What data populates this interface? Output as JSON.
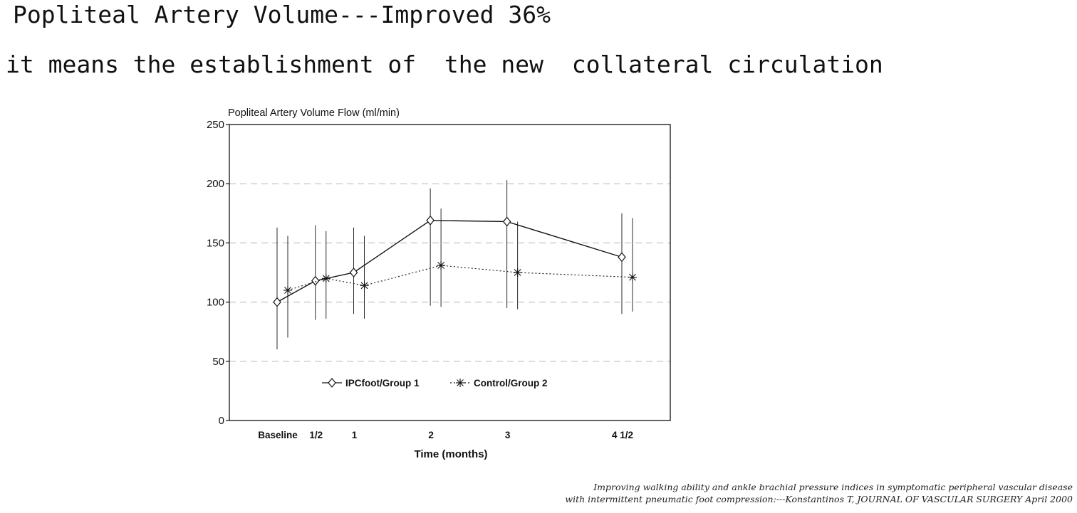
{
  "slide": {
    "title": "Popliteal Artery Volume---Improved 36%",
    "subtitle": "it means the establishment of  the new  collateral circulation"
  },
  "citation": {
    "line1": "Improving walking ability and ankle brachial pressure indices in symptomatic peripheral vascular disease",
    "line2": "with intermittent pneumatic foot compression:---Konstantinos T, JOURNAL OF VASCULAR SURGERY April 2000"
  },
  "colors": {
    "ink": "#111111",
    "grid": "#b5b5b5"
  },
  "chart_data": {
    "type": "line",
    "title": "Popliteal Artery Volume Flow (ml/min)",
    "xlabel": "Time (months)",
    "ylabel": "",
    "categories": [
      "Baseline",
      "1/2",
      "1",
      "2",
      "3",
      "4 1/2"
    ],
    "x": [
      0,
      0.5,
      1,
      2,
      3,
      4.5
    ],
    "ylim": [
      0,
      250
    ],
    "yticks": [
      0,
      50,
      100,
      150,
      200,
      250
    ],
    "grid": true,
    "legend_position": "lower-center",
    "series": [
      {
        "name": "IPCfoot/Group 1",
        "marker": "diamond",
        "line": "solid",
        "values": [
          100,
          118,
          125,
          169,
          168,
          138
        ],
        "err_low": [
          60,
          85,
          90,
          97,
          95,
          90
        ],
        "err_high": [
          163,
          165,
          163,
          196,
          203,
          175
        ]
      },
      {
        "name": "Control/Group 2",
        "marker": "asterisk",
        "line": "dotted",
        "values": [
          110,
          120,
          114,
          131,
          125,
          121
        ],
        "err_low": [
          70,
          86,
          86,
          96,
          94,
          92
        ],
        "err_high": [
          156,
          160,
          156,
          179,
          168,
          171
        ]
      }
    ]
  }
}
